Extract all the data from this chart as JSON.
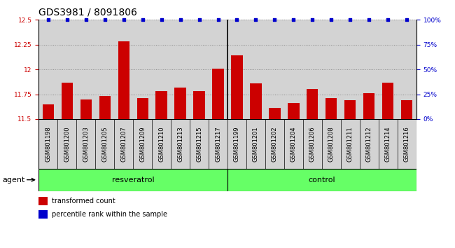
{
  "title": "GDS3981 / 8091806",
  "categories": [
    "GSM801198",
    "GSM801200",
    "GSM801203",
    "GSM801205",
    "GSM801207",
    "GSM801209",
    "GSM801210",
    "GSM801213",
    "GSM801215",
    "GSM801217",
    "GSM801199",
    "GSM801201",
    "GSM801202",
    "GSM801204",
    "GSM801206",
    "GSM801208",
    "GSM801211",
    "GSM801212",
    "GSM801214",
    "GSM801216"
  ],
  "bar_values": [
    11.65,
    11.87,
    11.7,
    11.73,
    12.28,
    11.71,
    11.78,
    11.82,
    11.78,
    12.01,
    12.14,
    11.86,
    11.61,
    11.66,
    11.8,
    11.71,
    11.69,
    11.76,
    11.87,
    11.69
  ],
  "percentile_values": [
    100,
    100,
    100,
    100,
    100,
    100,
    100,
    100,
    100,
    100,
    100,
    100,
    100,
    100,
    100,
    100,
    100,
    100,
    100,
    100
  ],
  "bar_color": "#cc0000",
  "percentile_color": "#0000cc",
  "ylim_left": [
    11.5,
    12.5
  ],
  "ylim_right": [
    0,
    100
  ],
  "yticks_left": [
    11.5,
    11.75,
    12.0,
    12.25,
    12.5
  ],
  "ytick_labels_left": [
    "11.5",
    "11.75",
    "12",
    "12.25",
    "12.5"
  ],
  "yticks_right": [
    0,
    25,
    50,
    75,
    100
  ],
  "ytick_labels_right": [
    "0%",
    "25%",
    "50%",
    "75%",
    "100%"
  ],
  "group1_label": "resveratrol",
  "group2_label": "control",
  "group1_count": 10,
  "group2_count": 10,
  "agent_label": "agent",
  "legend_bar_label": "transformed count",
  "legend_percentile_label": "percentile rank within the sample",
  "bar_width": 0.6,
  "background_color": "#ffffff",
  "plot_bg_color": "#d3d3d3",
  "xticklabel_bg_color": "#d3d3d3",
  "group_bg_color": "#66ff66",
  "title_fontsize": 10,
  "tick_fontsize": 6.5,
  "xtick_fontsize": 6,
  "label_fontsize": 8,
  "dotted_grid_color": "#888888",
  "red_color": "#cc0000",
  "blue_color": "#0000cc"
}
